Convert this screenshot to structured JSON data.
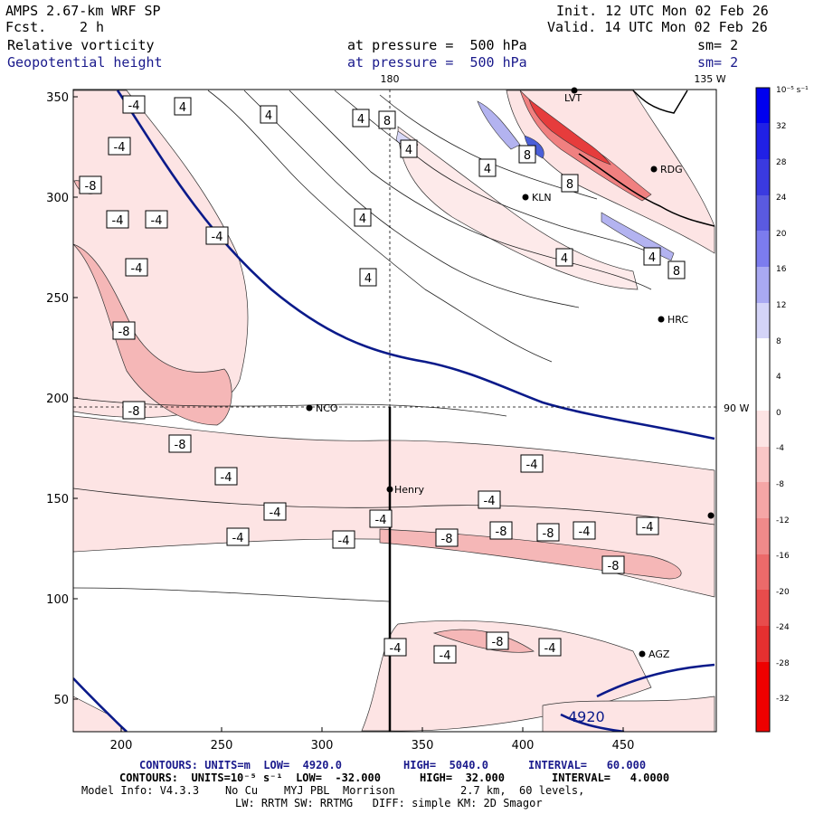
{
  "header": {
    "model": "AMPS 2.67-km WRF SP",
    "fcst_label": "Fcst.",
    "fcst_value": "2 h",
    "init": "Init. 12 UTC Mon 02 Feb 26",
    "valid": "Valid. 14 UTC Mon 02 Feb 26",
    "field1": "Relative vorticity",
    "field1_level": "at pressure =  500 hPa",
    "field1_sm": "sm= 2",
    "field2": "Geopotential height",
    "field2_level": "at pressure =  500 hPa",
    "field2_sm": "sm= 2"
  },
  "colors": {
    "height_contour": "#0a1a8a",
    "pos_strong": "#1e1ee6",
    "neg_strong": "#e61e1e",
    "neg_light": "#fde4e4",
    "neg_mid": "#f5b7b7"
  },
  "map": {
    "meridian_top_label": "180",
    "meridian_right_label": "135 W",
    "lat_right_label": "90 W",
    "height_label": "4920",
    "x_ticks": [
      "200",
      "250",
      "300",
      "350",
      "400",
      "450"
    ],
    "y_ticks": [
      "350",
      "300",
      "250",
      "200",
      "150",
      "100",
      "50"
    ],
    "stations": [
      {
        "id": "LVT"
      },
      {
        "id": "RDG"
      },
      {
        "id": "KLN"
      },
      {
        "id": "HRC"
      },
      {
        "id": "NCO"
      },
      {
        "id": "Henry"
      },
      {
        "id": "AGZ"
      }
    ],
    "vorticity_labels": [
      "-4",
      "4",
      "4",
      "4",
      "8",
      "-4",
      "-8",
      "-4",
      "-4",
      "-4",
      "-4",
      "-8",
      "-8",
      "-8",
      "-4",
      "-4",
      "-4",
      "-4",
      "-4",
      "-8",
      "-8",
      "-8",
      "-4",
      "-8",
      "-4",
      "-4",
      "-4",
      "-8",
      "-4",
      "-4",
      "-4",
      "4",
      "4",
      "4",
      "4",
      "8",
      "8",
      "4",
      "8",
      "4"
    ]
  },
  "colorbar": {
    "unit": "10⁻⁵ s⁻¹",
    "ticks": [
      "32",
      "28",
      "24",
      "20",
      "16",
      "12",
      "8",
      "4",
      "0",
      "-4",
      "-8",
      "-12",
      "-16",
      "-20",
      "-24",
      "-28",
      "-32"
    ]
  },
  "footer": {
    "line1_a": "CONTOURS: UNITS=m  LOW=  4920.0",
    "line1_b": "HIGH=  5040.0",
    "line1_c": "INTERVAL=   60.000",
    "line2_a": "CONTOURS:  UNITS=10⁻⁵ s⁻¹  LOW=  -32.000",
    "line2_b": "HIGH=  32.000",
    "line2_c": "INTERVAL=   4.0000",
    "line3": "Model Info: V4.3.3    No Cu    MYJ PBL  Morrison          2.7 km,  60 levels,",
    "line4": "LW: RRTM SW: RRTMG   DIFF: simple KM: 2D Smagor"
  }
}
